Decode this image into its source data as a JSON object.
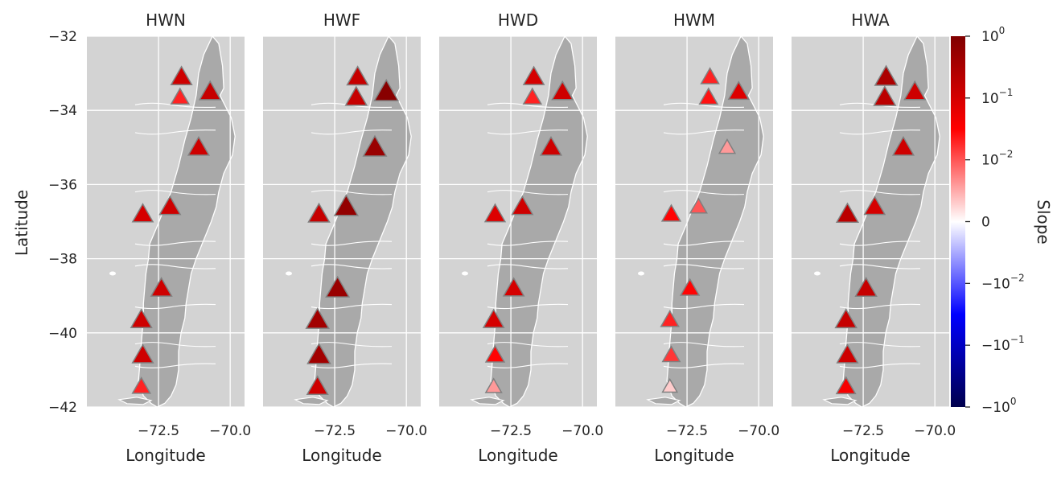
{
  "figure": {
    "ylabel": "Latitude",
    "xlabel": "Longitude",
    "colorbar_label": "Slope",
    "colors": {
      "panel_bg": "#d3d3d3",
      "land": "#a9a9a9",
      "border": "#ffffff",
      "marker_edge": "#808080",
      "text": "#262626"
    },
    "colormap": "seismic",
    "colorbar_scale": "symlog",
    "colorbar_ticks": [
      {
        "v": 1,
        "base": "10",
        "exp": "0"
      },
      {
        "v": 0.1,
        "base": "10",
        "exp": "−1"
      },
      {
        "v": 0.01,
        "base": "10",
        "exp": "−2"
      },
      {
        "v": 0,
        "base": "0",
        "exp": ""
      },
      {
        "v": -0.01,
        "base": "−10",
        "exp": "−2"
      },
      {
        "v": -0.1,
        "base": "−10",
        "exp": "−1"
      },
      {
        "v": -1,
        "base": "−10",
        "exp": "0"
      }
    ],
    "x_ticks": [
      {
        "v": -72.5,
        "label": "−72.5"
      },
      {
        "v": -70.0,
        "label": "−70.0"
      }
    ],
    "y_ticks": [
      {
        "v": -32,
        "label": "−32"
      },
      {
        "v": -34,
        "label": "−34"
      },
      {
        "v": -36,
        "label": "−36"
      },
      {
        "v": -38,
        "label": "−38"
      },
      {
        "v": -40,
        "label": "−40"
      },
      {
        "v": -42,
        "label": "−42"
      }
    ],
    "lon_range": [
      -75.0,
      -69.5
    ],
    "lat_range": [
      -42,
      -32
    ],
    "grid": true
  },
  "stations": [
    {
      "lon": -71.7,
      "lat": -33.1
    },
    {
      "lon": -71.75,
      "lat": -33.65
    },
    {
      "lon": -70.7,
      "lat": -33.5
    },
    {
      "lon": -71.1,
      "lat": -35.0
    },
    {
      "lon": -73.05,
      "lat": -36.8
    },
    {
      "lon": -72.1,
      "lat": -36.6
    },
    {
      "lon": -72.4,
      "lat": -38.8
    },
    {
      "lon": -73.1,
      "lat": -39.65
    },
    {
      "lon": -73.05,
      "lat": -40.6
    },
    {
      "lon": -73.1,
      "lat": -41.45
    }
  ],
  "panels": [
    {
      "title": "HWN",
      "slopes": [
        0.12,
        0.02,
        0.15,
        0.12,
        0.1,
        0.12,
        0.12,
        0.12,
        0.12,
        0.02
      ]
    },
    {
      "title": "HWF",
      "slopes": [
        0.15,
        0.15,
        0.8,
        0.5,
        0.15,
        0.6,
        0.5,
        0.4,
        0.4,
        0.12
      ]
    },
    {
      "title": "HWD",
      "slopes": [
        0.1,
        0.02,
        0.12,
        0.12,
        0.08,
        0.12,
        0.1,
        0.1,
        0.03,
        0.006
      ]
    },
    {
      "title": "HWM",
      "slopes": [
        0.02,
        0.025,
        0.08,
        0.006,
        0.03,
        0.01,
        0.03,
        0.02,
        0.015,
        0.003
      ]
    },
    {
      "title": "HWA",
      "slopes": [
        0.3,
        0.2,
        0.12,
        0.12,
        0.2,
        0.1,
        0.15,
        0.15,
        0.12,
        0.04
      ]
    }
  ]
}
